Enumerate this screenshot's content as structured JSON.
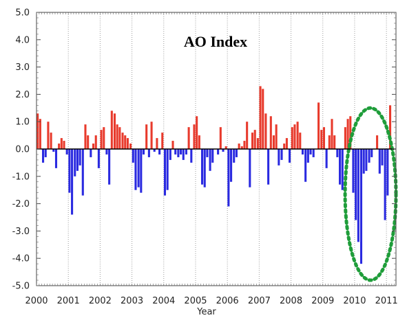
{
  "chart_data": {
    "type": "bar",
    "title": "AO Index",
    "xlabel": "Year",
    "ylabel": "",
    "xlim": [
      2000,
      2011.3
    ],
    "ylim": [
      -5.0,
      5.0
    ],
    "grid": "vertical dotted lines at each year",
    "x_tick_labels": [
      "2000",
      "2001",
      "2002",
      "2003",
      "2004",
      "2005",
      "2006",
      "2007",
      "2008",
      "2009",
      "2010",
      "2011"
    ],
    "y_tick_labels": [
      "5.0",
      "4.0",
      "3.0",
      "2.0",
      "1.0",
      "0.0",
      "-1.0",
      "-2.0",
      "-3.0",
      "-4.0",
      "-5.0"
    ],
    "y_tick_values": [
      5,
      4,
      3,
      2,
      1,
      0,
      -1,
      -2,
      -3,
      -4,
      -5
    ],
    "x_tick_values": [
      2000,
      2001,
      2002,
      2003,
      2004,
      2005,
      2006,
      2007,
      2008,
      2009,
      2010,
      2011
    ],
    "colors": {
      "positive": "#e83a2c",
      "negative": "#2a2ae0",
      "zero_line": "#000000",
      "highlight_ellipse": "#1f9d3a"
    },
    "highlight": {
      "shape": "dotted ellipse",
      "x_range": [
        2009.7,
        2011.3
      ],
      "y_range": [
        -4.8,
        1.5
      ]
    },
    "series": [
      {
        "x": [
          2000.0,
          2000.08,
          2000.17,
          2000.25,
          2000.33,
          2000.42,
          2000.5,
          2000.58,
          2000.67,
          2000.75,
          2000.83,
          2000.92,
          2001.0,
          2001.08,
          2001.17,
          2001.25,
          2001.33,
          2001.42,
          2001.5,
          2001.58,
          2001.67,
          2001.75,
          2001.83,
          2001.92,
          2002.0,
          2002.08,
          2002.17,
          2002.25,
          2002.33,
          2002.42,
          2002.5,
          2002.58,
          2002.67,
          2002.75,
          2002.83,
          2002.92,
          2003.0,
          2003.08,
          2003.17,
          2003.25,
          2003.33,
          2003.42,
          2003.5,
          2003.58,
          2003.67,
          2003.75,
          2003.83,
          2003.92,
          2004.0,
          2004.08,
          2004.17,
          2004.25,
          2004.33,
          2004.42,
          2004.5,
          2004.58,
          2004.67,
          2004.75,
          2004.83,
          2004.92,
          2005.0,
          2005.08,
          2005.17,
          2005.25,
          2005.33,
          2005.42,
          2005.5,
          2005.58,
          2005.67,
          2005.75,
          2005.83,
          2005.92,
          2006.0,
          2006.08,
          2006.17,
          2006.25,
          2006.33,
          2006.42,
          2006.5,
          2006.58,
          2006.67,
          2006.75,
          2006.83,
          2006.92,
          2007.0,
          2007.08,
          2007.17,
          2007.25,
          2007.33,
          2007.42,
          2007.5,
          2007.58,
          2007.67,
          2007.75,
          2007.83,
          2007.92,
          2008.0,
          2008.08,
          2008.17,
          2008.25,
          2008.33,
          2008.42,
          2008.5,
          2008.58,
          2008.67,
          2008.75,
          2008.83,
          2008.92,
          2009.0,
          2009.08,
          2009.17,
          2009.25,
          2009.33,
          2009.42,
          2009.5,
          2009.58,
          2009.67,
          2009.75,
          2009.83,
          2009.92,
          2010.0,
          2010.08,
          2010.17,
          2010.25,
          2010.33,
          2010.42,
          2010.5,
          2010.58,
          2010.67,
          2010.75,
          2010.83,
          2010.92,
          2011.0,
          2011.08
        ],
        "values": [
          1.3,
          1.1,
          -0.5,
          -0.3,
          1.0,
          0.6,
          -0.1,
          -0.7,
          0.2,
          0.4,
          0.3,
          -0.2,
          -1.6,
          -2.4,
          -1.0,
          -0.8,
          -0.6,
          -1.7,
          0.9,
          0.5,
          -0.3,
          0.2,
          0.5,
          -0.7,
          0.7,
          0.8,
          -0.2,
          -1.3,
          1.4,
          1.3,
          0.9,
          0.8,
          0.6,
          0.5,
          0.4,
          0.2,
          -0.5,
          -1.5,
          -1.4,
          -1.6,
          -0.2,
          0.9,
          -0.3,
          1.0,
          -0.1,
          0.4,
          -0.2,
          0.6,
          -1.7,
          -1.5,
          -0.4,
          0.3,
          -0.2,
          -0.3,
          -0.2,
          -0.4,
          -0.2,
          0.8,
          -0.5,
          0.9,
          1.2,
          0.5,
          -1.3,
          -1.4,
          -0.3,
          -0.8,
          -0.5,
          0.0,
          -0.2,
          0.8,
          -0.1,
          0.1,
          -2.1,
          -1.2,
          -0.5,
          -0.3,
          0.2,
          0.1,
          0.3,
          1.0,
          -1.4,
          0.6,
          0.7,
          0.4,
          2.3,
          2.2,
          1.3,
          -1.3,
          1.2,
          0.5,
          0.9,
          -0.6,
          -0.4,
          0.2,
          0.4,
          -0.5,
          0.8,
          0.9,
          1.0,
          0.6,
          -0.2,
          -1.2,
          -0.5,
          -0.2,
          -0.3,
          0.0,
          1.7,
          0.7,
          0.8,
          -0.7,
          0.5,
          1.1,
          0.5,
          -0.3,
          -1.3,
          -1.5,
          0.8,
          1.1,
          1.2,
          -1.6,
          -2.6,
          -3.4,
          -4.2,
          -0.9,
          -0.8,
          -0.5,
          -0.3,
          0.0,
          0.5,
          -0.9,
          -0.6,
          -2.6,
          -1.7,
          1.6
        ]
      }
    ]
  }
}
